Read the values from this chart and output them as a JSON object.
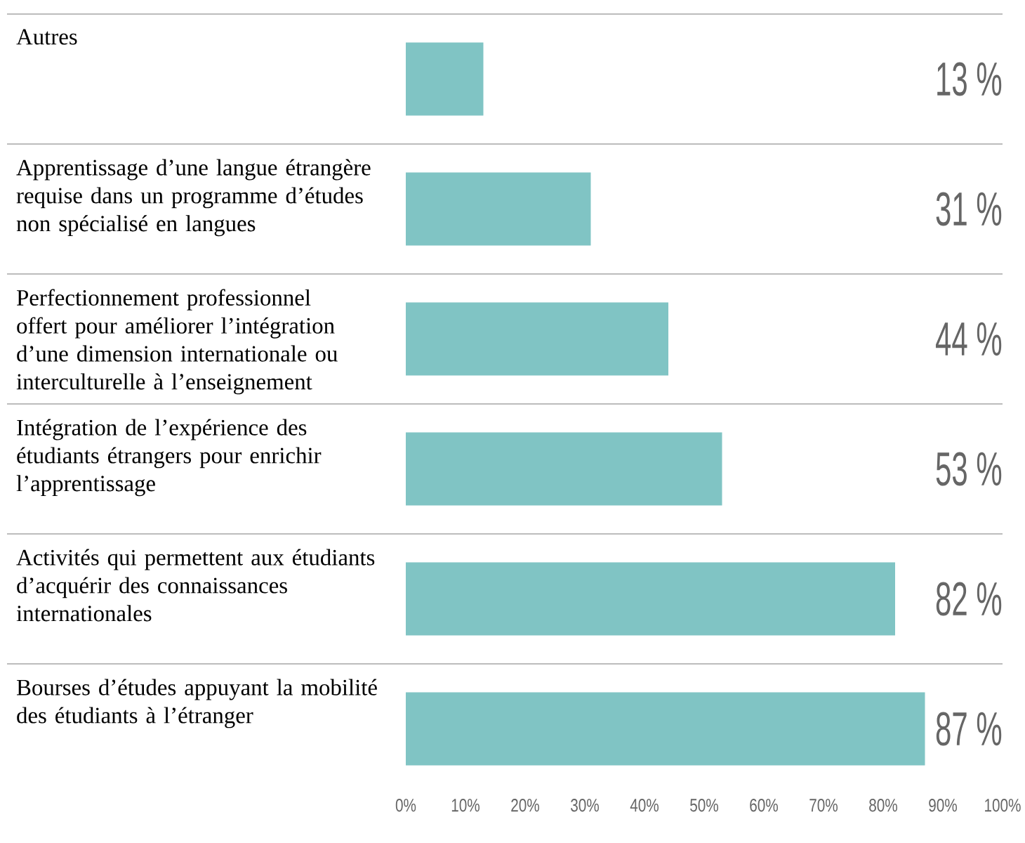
{
  "chart_data": {
    "type": "bar",
    "orientation": "horizontal",
    "categories": [
      "Autres",
      "Apprentissage d’une langue étrangère requise dans un programme d’études non spécialisé en langues",
      "Perfectionnement professionnel offert pour améliorer l’intégration d’une dimension internationale ou interculturelle à l’enseignement",
      "Intégration de l’expérience des étudiants étrangers pour enrichir l’apprentissage",
      "Activités qui permettent aux étudiants d’acquérir des connaissances internationales",
      "Bourses d’études appuyant la mobilité des étudiants à l’étranger"
    ],
    "values": [
      13,
      31,
      44,
      53,
      82,
      87
    ],
    "value_labels": [
      "13 %",
      "31 %",
      "44 %",
      "53 %",
      "82 %",
      "87 %"
    ],
    "color": "#80c4c4",
    "xlim": [
      0,
      100
    ],
    "xticks": [
      {
        "value": 0,
        "label": "0%"
      },
      {
        "value": 10,
        "label": "10%"
      },
      {
        "value": 20,
        "label": "20%"
      },
      {
        "value": 30,
        "label": "30%"
      },
      {
        "value": 40,
        "label": "40%"
      },
      {
        "value": 50,
        "label": "50%"
      },
      {
        "value": 60,
        "label": "60%"
      },
      {
        "value": 70,
        "label": "70%"
      },
      {
        "value": 80,
        "label": "80%"
      },
      {
        "value": 90,
        "label": "90%"
      },
      {
        "value": 100,
        "label": "100%"
      }
    ]
  }
}
